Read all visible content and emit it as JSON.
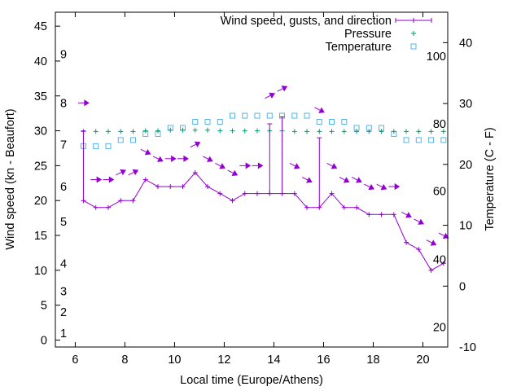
{
  "chart_data": {
    "type": "line",
    "title": "",
    "xlabel": "Local time (Europe/Athens)",
    "ylabel": "Wind speed (kn - Beaufort)",
    "y2label": "Temperature (C - F)",
    "xlim": [
      5.2,
      21
    ],
    "ylim": [
      -1,
      47
    ],
    "y2lim": [
      -10,
      45
    ],
    "x_ticks": [
      6,
      8,
      10,
      12,
      14,
      16,
      18,
      20
    ],
    "y_ticks": [
      0,
      5,
      10,
      15,
      20,
      25,
      30,
      35,
      40,
      45
    ],
    "y2_ticks": [
      -10,
      0,
      10,
      20,
      30,
      40
    ],
    "beaufort_labels": [
      {
        "label": "1",
        "kn": 1
      },
      {
        "label": "2",
        "kn": 4
      },
      {
        "label": "3",
        "kn": 7
      },
      {
        "label": "4",
        "kn": 11
      },
      {
        "label": "5",
        "kn": 17
      },
      {
        "label": "6",
        "kn": 22
      },
      {
        "label": "7",
        "kn": 28
      },
      {
        "label": "8",
        "kn": 34
      },
      {
        "label": "9",
        "kn": 41
      }
    ],
    "fahrenheit_labels": [
      {
        "label": "20",
        "c": -6.7
      },
      {
        "label": "40",
        "c": 4.4
      },
      {
        "label": "60",
        "c": 15.6
      },
      {
        "label": "80",
        "c": 26.7
      },
      {
        "label": "100",
        "c": 37.8
      }
    ],
    "legend": {
      "position": "top-right",
      "entries": [
        "Wind speed, gusts, and direction",
        "Pressure",
        "Temperature"
      ]
    },
    "colors": {
      "wind": "#9400d3",
      "pressure": "#009e73",
      "temperature": "#56b4e9"
    },
    "series": [
      {
        "name": "Wind speed, gusts, and direction",
        "x": [
          6.33,
          6.83,
          7.33,
          7.83,
          8.33,
          8.83,
          9.33,
          9.83,
          10.33,
          10.83,
          11.33,
          11.83,
          12.33,
          12.83,
          13.33,
          13.83,
          14.33,
          14.83,
          15.33,
          15.83,
          16.33,
          16.83,
          17.33,
          17.83,
          18.33,
          18.83,
          19.33,
          19.83,
          20.33,
          20.83
        ],
        "y": [
          20,
          19,
          19,
          20,
          20,
          23,
          22,
          22,
          22,
          24,
          22,
          21,
          20,
          21,
          21,
          21,
          21,
          21,
          19,
          19,
          21,
          19,
          19,
          18,
          18,
          18,
          14,
          13,
          10,
          11
        ],
        "gusts": [
          30,
          null,
          null,
          null,
          null,
          null,
          null,
          null,
          null,
          null,
          null,
          null,
          null,
          null,
          null,
          31,
          32,
          null,
          null,
          29,
          null,
          null,
          null,
          null,
          null,
          null,
          null,
          null,
          null,
          null
        ],
        "direction_marks": [
          {
            "x": 6.33,
            "kn": 34,
            "dir": "W"
          },
          {
            "x": 6.83,
            "kn": 23,
            "dir": "W"
          },
          {
            "x": 7.33,
            "kn": 23,
            "dir": "W"
          },
          {
            "x": 7.83,
            "kn": 24,
            "dir": "SW"
          },
          {
            "x": 8.33,
            "kn": 24,
            "dir": "SW"
          },
          {
            "x": 8.83,
            "kn": 27,
            "dir": "NW"
          },
          {
            "x": 9.33,
            "kn": 26,
            "dir": "NW"
          },
          {
            "x": 9.83,
            "kn": 26,
            "dir": "W"
          },
          {
            "x": 10.33,
            "kn": 26,
            "dir": "W"
          },
          {
            "x": 10.83,
            "kn": 28,
            "dir": "SW"
          },
          {
            "x": 11.33,
            "kn": 26,
            "dir": "NW"
          },
          {
            "x": 11.83,
            "kn": 25,
            "dir": "NW"
          },
          {
            "x": 12.33,
            "kn": 24,
            "dir": "NW"
          },
          {
            "x": 12.83,
            "kn": 25,
            "dir": "W"
          },
          {
            "x": 13.33,
            "kn": 25,
            "dir": "W"
          },
          {
            "x": 13.83,
            "kn": 35,
            "dir": "SW"
          },
          {
            "x": 14.33,
            "kn": 36,
            "dir": "SW"
          },
          {
            "x": 14.83,
            "kn": 25,
            "dir": "NW"
          },
          {
            "x": 15.33,
            "kn": 23,
            "dir": "NW"
          },
          {
            "x": 15.83,
            "kn": 33,
            "dir": "NW"
          },
          {
            "x": 16.33,
            "kn": 25,
            "dir": "NW"
          },
          {
            "x": 16.83,
            "kn": 23,
            "dir": "NW"
          },
          {
            "x": 17.33,
            "kn": 23,
            "dir": "NW"
          },
          {
            "x": 17.83,
            "kn": 22,
            "dir": "NW"
          },
          {
            "x": 18.33,
            "kn": 22,
            "dir": "NW"
          },
          {
            "x": 18.83,
            "kn": 22,
            "dir": "W"
          },
          {
            "x": 19.33,
            "kn": 18,
            "dir": "NW"
          },
          {
            "x": 19.83,
            "kn": 17,
            "dir": "NW"
          },
          {
            "x": 20.33,
            "kn": 14,
            "dir": "NW"
          },
          {
            "x": 20.83,
            "kn": 15,
            "dir": "NW"
          }
        ]
      },
      {
        "name": "Pressure",
        "x": [
          6.33,
          6.83,
          7.33,
          7.83,
          8.33,
          8.83,
          9.33,
          9.83,
          10.33,
          10.83,
          11.33,
          11.83,
          12.33,
          12.83,
          13.33,
          13.83,
          14.33,
          14.83,
          15.33,
          15.83,
          16.33,
          16.83,
          17.33,
          17.83,
          18.33,
          18.83,
          19.33,
          19.83,
          20.33,
          20.83
        ],
        "y": [
          29.9,
          29.9,
          29.9,
          29.9,
          29.9,
          30.0,
          30.0,
          30.1,
          30.1,
          30.1,
          30.1,
          30.0,
          30.0,
          30.0,
          30.0,
          30.0,
          30.0,
          29.9,
          29.9,
          29.9,
          29.9,
          29.9,
          29.9,
          29.9,
          29.9,
          29.9,
          29.9,
          29.9,
          29.9,
          29.9
        ]
      },
      {
        "name": "Temperature",
        "x": [
          6.33,
          6.83,
          7.33,
          7.83,
          8.33,
          8.83,
          9.33,
          9.83,
          10.33,
          10.83,
          11.33,
          11.83,
          12.33,
          12.83,
          13.33,
          13.83,
          14.33,
          14.83,
          15.33,
          15.83,
          16.33,
          16.83,
          17.33,
          17.83,
          18.33,
          18.83,
          19.33,
          19.83,
          20.33,
          20.83
        ],
        "y": [
          23,
          23,
          23,
          24,
          24,
          25,
          25,
          26,
          26,
          27,
          27,
          27,
          28,
          28,
          28,
          28,
          28,
          28,
          28,
          27,
          27,
          27,
          26,
          26,
          26,
          25,
          24,
          24,
          24,
          24
        ]
      }
    ]
  }
}
